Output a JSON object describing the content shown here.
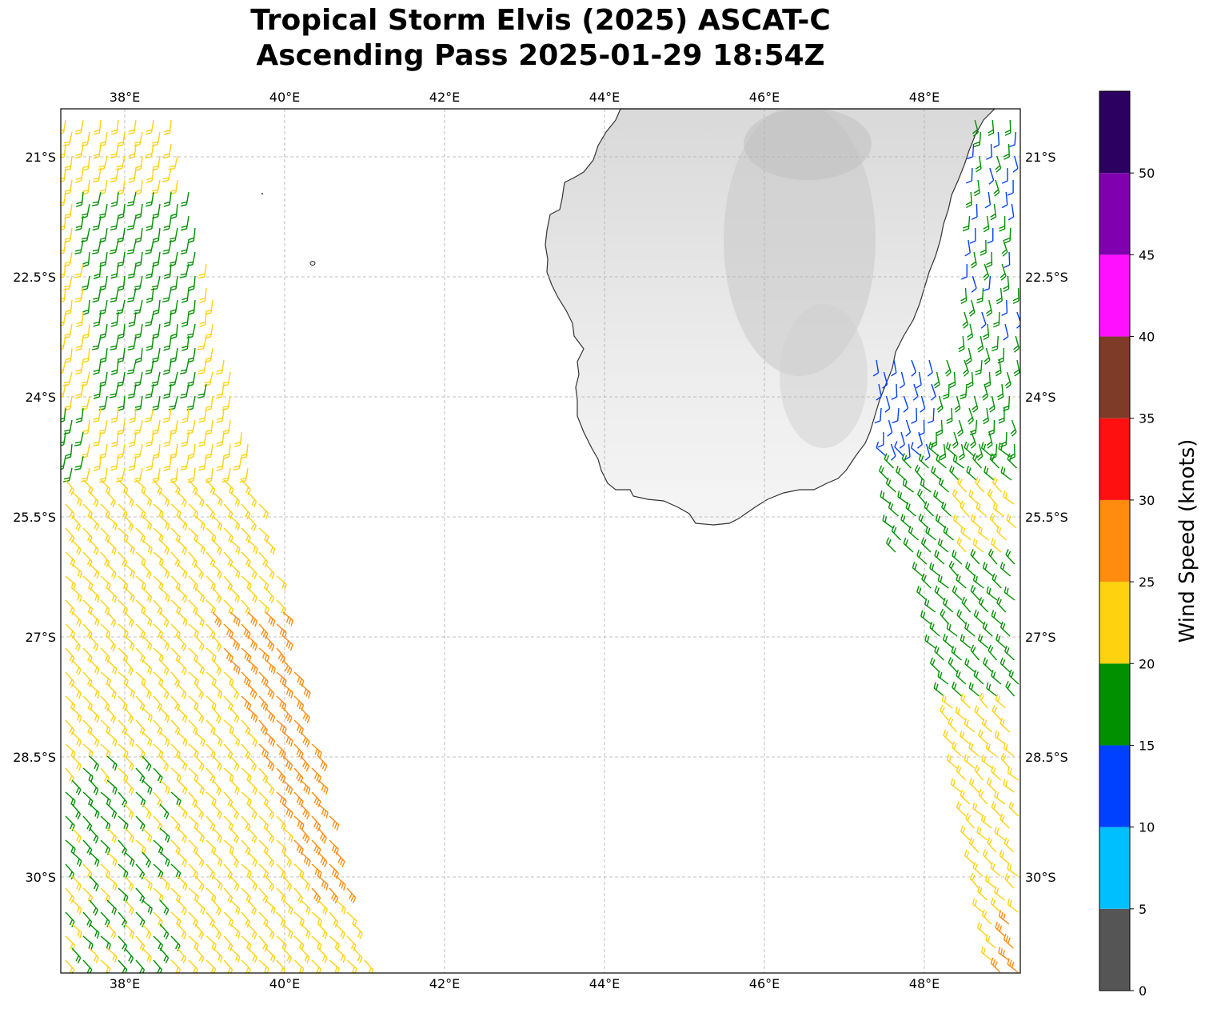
{
  "title": {
    "line1": "Tropical Storm Elvis (2025) ASCAT-C",
    "line2": "Ascending Pass 2025-01-29 18:54Z"
  },
  "map": {
    "extent": {
      "lon_min": 37.2,
      "lon_max": 49.2,
      "lat_top": -20.4,
      "lat_bottom": -31.2
    },
    "lon_ticks": [
      {
        "value": 38,
        "label": "38°E"
      },
      {
        "value": 40,
        "label": "40°E"
      },
      {
        "value": 42,
        "label": "42°E"
      },
      {
        "value": 44,
        "label": "44°E"
      },
      {
        "value": 46,
        "label": "46°E"
      },
      {
        "value": 48,
        "label": "48°E"
      }
    ],
    "lat_ticks": [
      {
        "value": -21,
        "label": "21°S"
      },
      {
        "value": -22.5,
        "label": "22.5°S"
      },
      {
        "value": -24,
        "label": "24°S"
      },
      {
        "value": -25.5,
        "label": "25.5°S"
      },
      {
        "value": -27,
        "label": "27°S"
      },
      {
        "value": -28.5,
        "label": "28.5°S"
      },
      {
        "value": -30,
        "label": "30°S"
      }
    ],
    "gridlines": true,
    "land_color": "#ececec",
    "coastline_color": "#333333"
  },
  "colorbar": {
    "title": "Wind Speed (knots)",
    "placement": "right",
    "bins": [
      {
        "min": 0,
        "max": 5,
        "color": "#555555"
      },
      {
        "min": 5,
        "max": 10,
        "color": "#00bfff"
      },
      {
        "min": 10,
        "max": 15,
        "color": "#0040ff"
      },
      {
        "min": 15,
        "max": 20,
        "color": "#009000"
      },
      {
        "min": 20,
        "max": 25,
        "color": "#ffd20f"
      },
      {
        "min": 25,
        "max": 30,
        "color": "#ff8c0f"
      },
      {
        "min": 30,
        "max": 35,
        "color": "#ff1010"
      },
      {
        "min": 35,
        "max": 40,
        "color": "#7e3b28"
      },
      {
        "min": 40,
        "max": 45,
        "color": "#ff10ff"
      },
      {
        "min": 45,
        "max": 50,
        "color": "#8000b0"
      },
      {
        "min": 50,
        "max": 55,
        "color": "#2c0060"
      }
    ],
    "tick_labels": [
      "0",
      "5",
      "10",
      "15",
      "20",
      "25",
      "30",
      "35",
      "40",
      "45",
      "50"
    ]
  },
  "chart_data": {
    "type": "wind-barb-map",
    "title": "Tropical Storm Elvis (2025) ASCAT-C Ascending Pass 2025-01-29 18:54Z",
    "units": "knots",
    "swaths": [
      {
        "name": "west swath",
        "regions": [
          {
            "lat": [
              -20.4,
              -22.5
            ],
            "lon": [
              37.2,
              38.6
            ],
            "wind_speed_kt": "20-25"
          },
          {
            "lat": [
              -21.0,
              -24.0
            ],
            "lon": [
              37.8,
              39.0
            ],
            "wind_speed_kt": "15-20"
          },
          {
            "lat": [
              -22.5,
              -25.2
            ],
            "lon": [
              37.2,
              37.8
            ],
            "wind_speed_kt": "15-20"
          },
          {
            "lat": [
              -24.0,
              -28.2
            ],
            "lon": [
              37.2,
              40.0
            ],
            "wind_speed_kt": "20-25"
          },
          {
            "lat": [
              -26.8,
              -30.5
            ],
            "lon": [
              39.3,
              41.0
            ],
            "wind_speed_kt": "25-30"
          },
          {
            "lat": [
              -28.5,
              -31.2
            ],
            "lon": [
              37.2,
              38.8
            ],
            "wind_speed_kt": "15-20 / 20-25"
          }
        ]
      },
      {
        "name": "east swath",
        "regions": [
          {
            "lat": [
              -20.4,
              -23.8
            ],
            "lon": [
              48.0,
              49.2
            ],
            "wind_speed_kt": "5-15"
          },
          {
            "lat": [
              -23.5,
              -25.0
            ],
            "lon": [
              47.4,
              48.6
            ],
            "wind_speed_kt": "10-15"
          },
          {
            "lat": [
              -24.0,
              -28.2
            ],
            "lon": [
              47.6,
              49.2
            ],
            "wind_speed_kt": "15-20"
          },
          {
            "lat": [
              -26.5,
              -31.2
            ],
            "lon": [
              47.9,
              49.2
            ],
            "wind_speed_kt": "20-25"
          }
        ]
      }
    ]
  }
}
